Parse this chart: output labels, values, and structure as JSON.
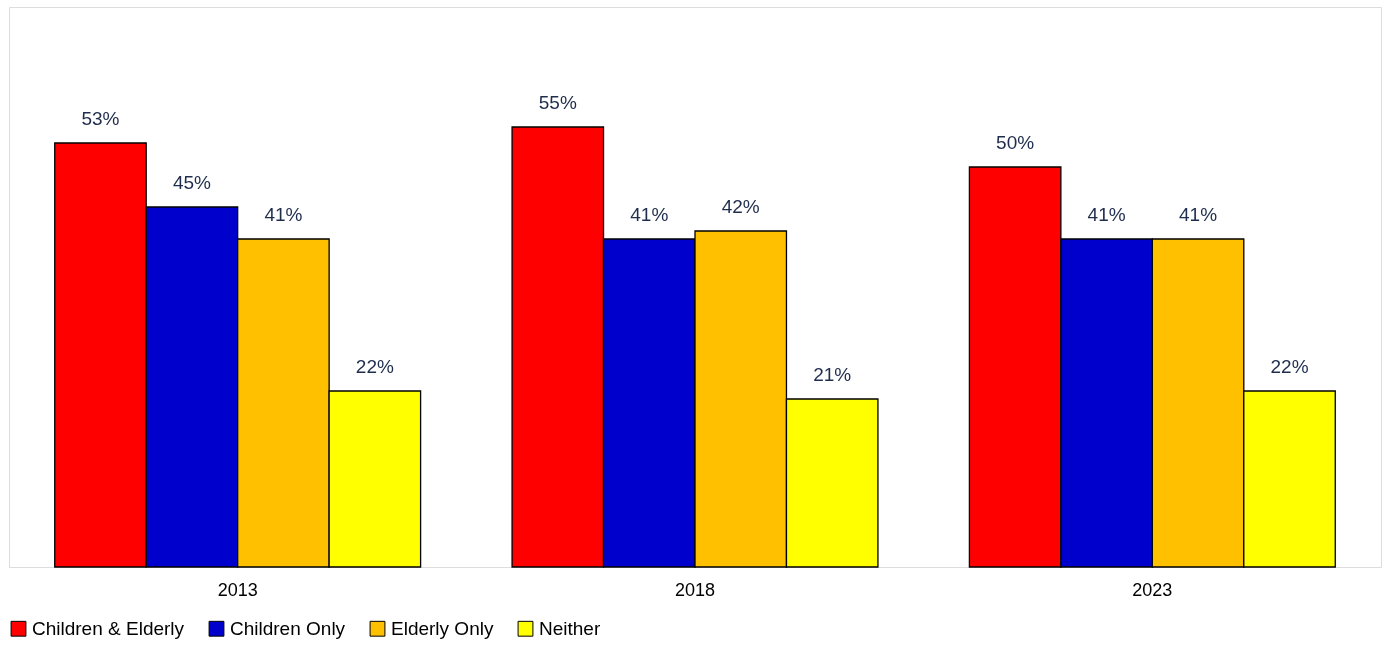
{
  "chart_data": {
    "type": "bar",
    "categories": [
      "2013",
      "2018",
      "2023"
    ],
    "series": [
      {
        "name": "Children & Elderly",
        "color": "#ff0000",
        "values": [
          53,
          55,
          50
        ],
        "value_labels": [
          "53%",
          "55%",
          "50%"
        ]
      },
      {
        "name": "Children Only",
        "color": "#0000cc",
        "values": [
          45,
          41,
          41
        ],
        "value_labels": [
          "45%",
          "41%",
          "41%"
        ]
      },
      {
        "name": "Elderly Only",
        "color": "#ffc000",
        "values": [
          41,
          42,
          41
        ],
        "value_labels": [
          "41%",
          "42%",
          "41%"
        ]
      },
      {
        "name": "Neither",
        "color": "#ffff00",
        "values": [
          22,
          21,
          22
        ],
        "value_labels": [
          "22%",
          "21%",
          "22%"
        ]
      }
    ],
    "ylim": [
      0,
      70
    ],
    "grid": false,
    "legend": "bottom",
    "tick_labels": "x"
  }
}
